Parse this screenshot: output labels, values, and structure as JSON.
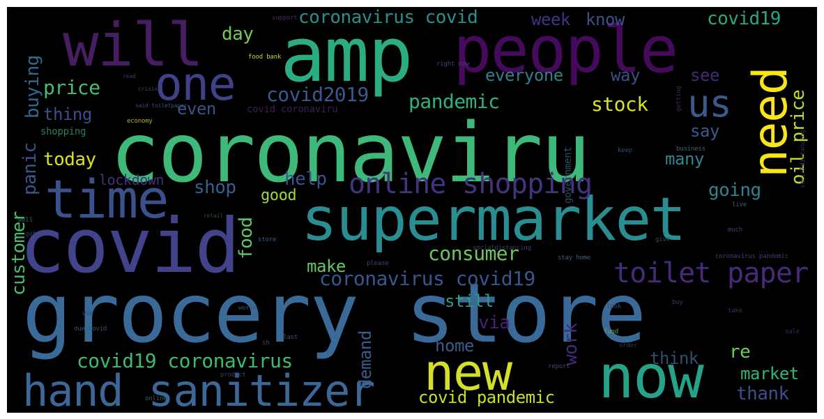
{
  "words": [
    {
      "text": "coronaviru",
      "color": "#3fb97a",
      "rotated": false
    },
    {
      "text": "grocery store",
      "color": "#3a6b98",
      "rotated": false
    },
    {
      "text": "supermarket",
      "color": "#2a8d91",
      "rotated": false
    },
    {
      "text": "amp",
      "color": "#2bac82",
      "rotated": false
    },
    {
      "text": "people",
      "color": "#460a5d",
      "rotated": false
    },
    {
      "text": "covid",
      "color": "#43438c",
      "rotated": false
    },
    {
      "text": "will",
      "color": "#461f63",
      "rotated": false
    },
    {
      "text": "time",
      "color": "#3c508b",
      "rotated": false
    },
    {
      "text": "now",
      "color": "#26a288",
      "rotated": false
    },
    {
      "text": "need",
      "color": "#f7e51a",
      "rotated": true
    },
    {
      "text": "hand sanitizer",
      "color": "#3c6897",
      "rotated": false
    },
    {
      "text": "one",
      "color": "#41418a",
      "rotated": false
    },
    {
      "text": "new",
      "color": "#d4df2a",
      "rotated": false
    },
    {
      "text": "us",
      "color": "#3b5a8c",
      "rotated": false
    },
    {
      "text": "online shopping",
      "color": "#45337e",
      "rotated": false
    },
    {
      "text": "toilet paper",
      "color": "#472a7a",
      "rotated": false
    },
    {
      "text": "coronavirus covid19",
      "color": "#37578f",
      "rotated": false
    },
    {
      "text": "covid19 coronavirus",
      "color": "#3dbb70",
      "rotated": false
    },
    {
      "text": "coronavirus covid",
      "color": "#2c8e8e",
      "rotated": false
    },
    {
      "text": "covid2019",
      "color": "#39598f",
      "rotated": false
    },
    {
      "text": "pandemic",
      "color": "#2db37d",
      "rotated": false
    },
    {
      "text": "consumer",
      "color": "#6cc95a",
      "rotated": false
    },
    {
      "text": "stock",
      "color": "#d9e120",
      "rotated": false
    },
    {
      "text": "covid pandemic",
      "color": "#c9df2b",
      "rotated": false
    },
    {
      "text": "covid19",
      "color": "#27a884",
      "rotated": false
    },
    {
      "text": "oil price",
      "color": "#c2df28",
      "rotated": true
    },
    {
      "text": "price",
      "color": "#44bf71",
      "rotated": false
    },
    {
      "text": "everyone",
      "color": "#31808e",
      "rotated": false
    },
    {
      "text": "day",
      "color": "#76cc50",
      "rotated": false
    },
    {
      "text": "week",
      "color": "#433382",
      "rotated": false
    },
    {
      "text": "know",
      "color": "#3b538b",
      "rotated": false
    },
    {
      "text": "way",
      "color": "#3e4f8a",
      "rotated": false
    },
    {
      "text": "see",
      "color": "#462a76",
      "rotated": false
    },
    {
      "text": "buying",
      "color": "#2f6b8e",
      "rotated": true
    },
    {
      "text": "panic",
      "color": "#3a568c",
      "rotated": true
    },
    {
      "text": "thing",
      "color": "#3d4e8a",
      "rotated": false
    },
    {
      "text": "even",
      "color": "#3b5289",
      "rotated": false
    },
    {
      "text": "say",
      "color": "#3b5a8c",
      "rotated": false
    },
    {
      "text": "today",
      "color": "#dbe31f",
      "rotated": false
    },
    {
      "text": "many",
      "color": "#32858e",
      "rotated": false
    },
    {
      "text": "lockdown",
      "color": "#46307e",
      "rotated": false
    },
    {
      "text": "shop",
      "color": "#35618d",
      "rotated": false
    },
    {
      "text": "help",
      "color": "#3b548b",
      "rotated": false
    },
    {
      "text": "going",
      "color": "#2f838e",
      "rotated": false
    },
    {
      "text": "good",
      "color": "#9ed93a",
      "rotated": false
    },
    {
      "text": "food",
      "color": "#5ac864",
      "rotated": true
    },
    {
      "text": "customer",
      "color": "#48bd6c",
      "rotated": true
    },
    {
      "text": "make",
      "color": "#60c963",
      "rotated": false
    },
    {
      "text": "re",
      "color": "#6ecd58",
      "rotated": false
    },
    {
      "text": "via",
      "color": "#482173",
      "rotated": false
    },
    {
      "text": "still",
      "color": "#2e9c86",
      "rotated": false
    },
    {
      "text": "work",
      "color": "#442a80",
      "rotated": true
    },
    {
      "text": "home",
      "color": "#3b5b8c",
      "rotated": false
    },
    {
      "text": "demand",
      "color": "#3a5d8d",
      "rotated": true
    },
    {
      "text": "market",
      "color": "#2fb47c",
      "rotated": false
    },
    {
      "text": "thank",
      "color": "#3b5088",
      "rotated": false
    },
    {
      "text": "support",
      "color": "#4a2a62",
      "rotated": false
    },
    {
      "text": "food bank",
      "color": "#c7d63e",
      "rotated": false
    },
    {
      "text": "right now",
      "color": "#4a3d6a",
      "rotated": false
    },
    {
      "text": "read",
      "color": "#3b3a66",
      "rotated": false
    },
    {
      "text": "crisis",
      "color": "#2f4f6a",
      "rotated": false
    },
    {
      "text": "covid coronaviru",
      "color": "#3b1f54",
      "rotated": false
    },
    {
      "text": "shopping",
      "color": "#26805f",
      "rotated": false
    },
    {
      "text": "economy",
      "color": "#b5b12f",
      "rotated": false
    },
    {
      "text": "said toiletpaper",
      "color": "#3d4f76",
      "rotated": false
    },
    {
      "text": "government",
      "color": "#27525f",
      "rotated": true
    },
    {
      "text": "business",
      "color": "#3e5f7c",
      "rotated": false
    },
    {
      "text": "retail",
      "color": "#2b4a58",
      "rotated": false
    },
    {
      "text": "well",
      "color": "#2e6b52",
      "rotated": false
    },
    {
      "text": "socialdistancing",
      "color": "#3a3d64",
      "rotated": false
    },
    {
      "text": "stay home",
      "color": "#3e5f7c",
      "rotated": false
    },
    {
      "text": "coronavirus pandemic",
      "color": "#4a3d6a",
      "rotated": false
    },
    {
      "text": "due covid",
      "color": "#39506d",
      "rotated": false
    },
    {
      "text": "use",
      "color": "#3c4a6d",
      "rotated": false
    },
    {
      "text": "product",
      "color": "#3b3a66",
      "rotated": false
    },
    {
      "text": "report",
      "color": "#3f4e70",
      "rotated": false
    },
    {
      "text": "order",
      "color": "#2a3d53",
      "rotated": false
    },
    {
      "text": "think",
      "color": "#2f4f6a",
      "rotated": false
    },
    {
      "text": "sale",
      "color": "#3a2b5a",
      "rotated": false
    },
    {
      "text": "online",
      "color": "#2e5b62",
      "rotated": false
    },
    {
      "text": "world",
      "color": "#3d4b70",
      "rotated": false
    },
    {
      "text": "much",
      "color": "#4a3d6a",
      "rotated": false
    },
    {
      "text": "live",
      "color": "#3e5f7c",
      "rotated": false
    },
    {
      "text": "buy",
      "color": "#3b3a66",
      "rotated": false
    },
    {
      "text": "take",
      "color": "#2a3d53",
      "rotated": false
    },
    {
      "text": "please",
      "color": "#4a3d6a",
      "rotated": false
    },
    {
      "text": "keep",
      "color": "#2f4f6a",
      "rotated": false
    },
    {
      "text": "last",
      "color": "#3d4b70",
      "rotated": false
    },
    {
      "text": "fund",
      "color": "#6ca04a",
      "rotated": false
    },
    {
      "text": "store",
      "color": "#3e5f7c",
      "rotated": false
    },
    {
      "text": "got",
      "color": "#3b3a66",
      "rotated": false
    },
    {
      "text": "look",
      "color": "#3d4b70",
      "rotated": false
    },
    {
      "text": "give",
      "color": "#2f4f6a",
      "rotated": false
    },
    {
      "text": "sh",
      "color": "#3d4b70",
      "rotated": false
    },
    {
      "text": "getting",
      "color": "#3a2b5a",
      "rotated": true
    },
    {
      "text": "socialdistancing",
      "color": "#3a2b5a",
      "rotated": true
    }
  ]
}
